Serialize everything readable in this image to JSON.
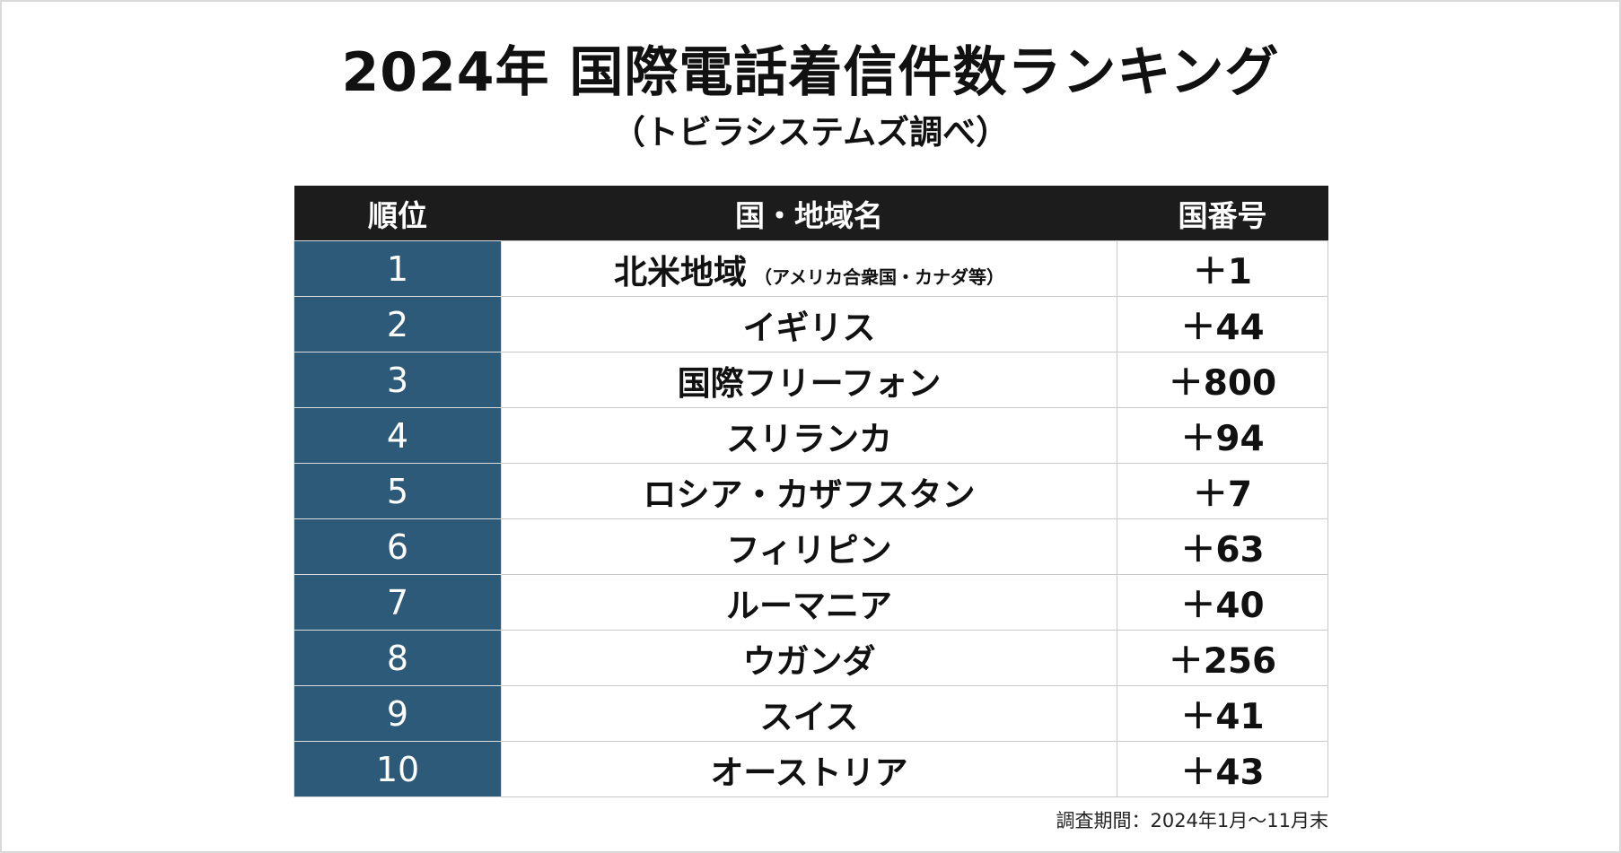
{
  "title": "2024年 国際電話着信件数ランキング",
  "subtitle": "（トビラシステムズ調べ）",
  "table": {
    "headers": {
      "rank": "順位",
      "region": "国・地域名",
      "code": "国番号"
    },
    "rows": [
      {
        "rank": "1",
        "region": "北米地域",
        "note": "（アメリカ合衆国・カナダ等）",
        "code": "＋1"
      },
      {
        "rank": "2",
        "region": "イギリス",
        "note": "",
        "code": "＋44"
      },
      {
        "rank": "3",
        "region": "国際フリーフォン",
        "note": "",
        "code": "＋800"
      },
      {
        "rank": "4",
        "region": "スリランカ",
        "note": "",
        "code": "＋94"
      },
      {
        "rank": "5",
        "region": "ロシア・カザフスタン",
        "note": "",
        "code": "＋7"
      },
      {
        "rank": "6",
        "region": "フィリピン",
        "note": "",
        "code": "＋63"
      },
      {
        "rank": "7",
        "region": "ルーマニア",
        "note": "",
        "code": "＋40"
      },
      {
        "rank": "8",
        "region": "ウガンダ",
        "note": "",
        "code": "＋256"
      },
      {
        "rank": "9",
        "region": "スイス",
        "note": "",
        "code": "＋41"
      },
      {
        "rank": "10",
        "region": "オーストリア",
        "note": "",
        "code": "＋43"
      }
    ]
  },
  "footnote": "調査期間：2024年1月〜11月末",
  "colors": {
    "header_bg": "#1c1c1c",
    "rank_bg": "#2e5a7a",
    "border": "#c9c9c9"
  }
}
